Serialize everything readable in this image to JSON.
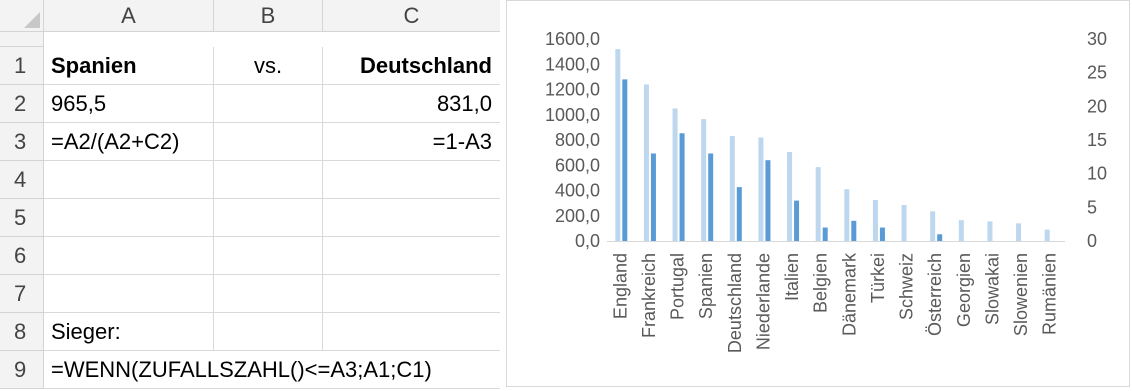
{
  "sheet": {
    "columns": [
      "A",
      "B",
      "C"
    ],
    "rows": [
      "1",
      "2",
      "3",
      "4",
      "5",
      "6",
      "7",
      "8",
      "9"
    ],
    "cells": {
      "A1": "Spanien",
      "B1": "vs.",
      "C1": "Deutschland",
      "A2": "965,5",
      "C2": "831,0",
      "A3": "=A2/(A2+C2)",
      "C3": "=1-A3",
      "A8": "Sieger:",
      "A9": "=WENN(ZUFALLSZAHL()<=A3;A1;C1)"
    }
  },
  "chart_data": {
    "type": "bar",
    "categories": [
      "England",
      "Frankreich",
      "Portugal",
      "Spanien",
      "Deutschland",
      "Niederlande",
      "Italien",
      "Belgien",
      "Dänemark",
      "Türkei",
      "Schweiz",
      "Österreich",
      "Georgien",
      "Slowakai",
      "Slowenien",
      "Rumänien"
    ],
    "series": [
      {
        "axis": "left",
        "color": "#bdd7ee",
        "values": [
          1520,
          1240,
          1050,
          965.5,
          831,
          820,
          705,
          585,
          410,
          325,
          285,
          235,
          165,
          155,
          140,
          90
        ]
      },
      {
        "axis": "right",
        "color": "#5b9bd5",
        "values": [
          24,
          13,
          16,
          13,
          8,
          12,
          6,
          2,
          3,
          2,
          0,
          1,
          0,
          0,
          0,
          0
        ]
      }
    ],
    "y_left": {
      "min": 0,
      "max": 1600,
      "ticks": [
        "0,0",
        "200,0",
        "400,0",
        "600,0",
        "800,0",
        "1000,0",
        "1200,0",
        "1400,0",
        "1600,0"
      ]
    },
    "y_right": {
      "min": 0,
      "max": 30,
      "ticks": [
        "0",
        "5",
        "10",
        "15",
        "20",
        "25",
        "30"
      ]
    },
    "grid": false,
    "legend": "none"
  }
}
